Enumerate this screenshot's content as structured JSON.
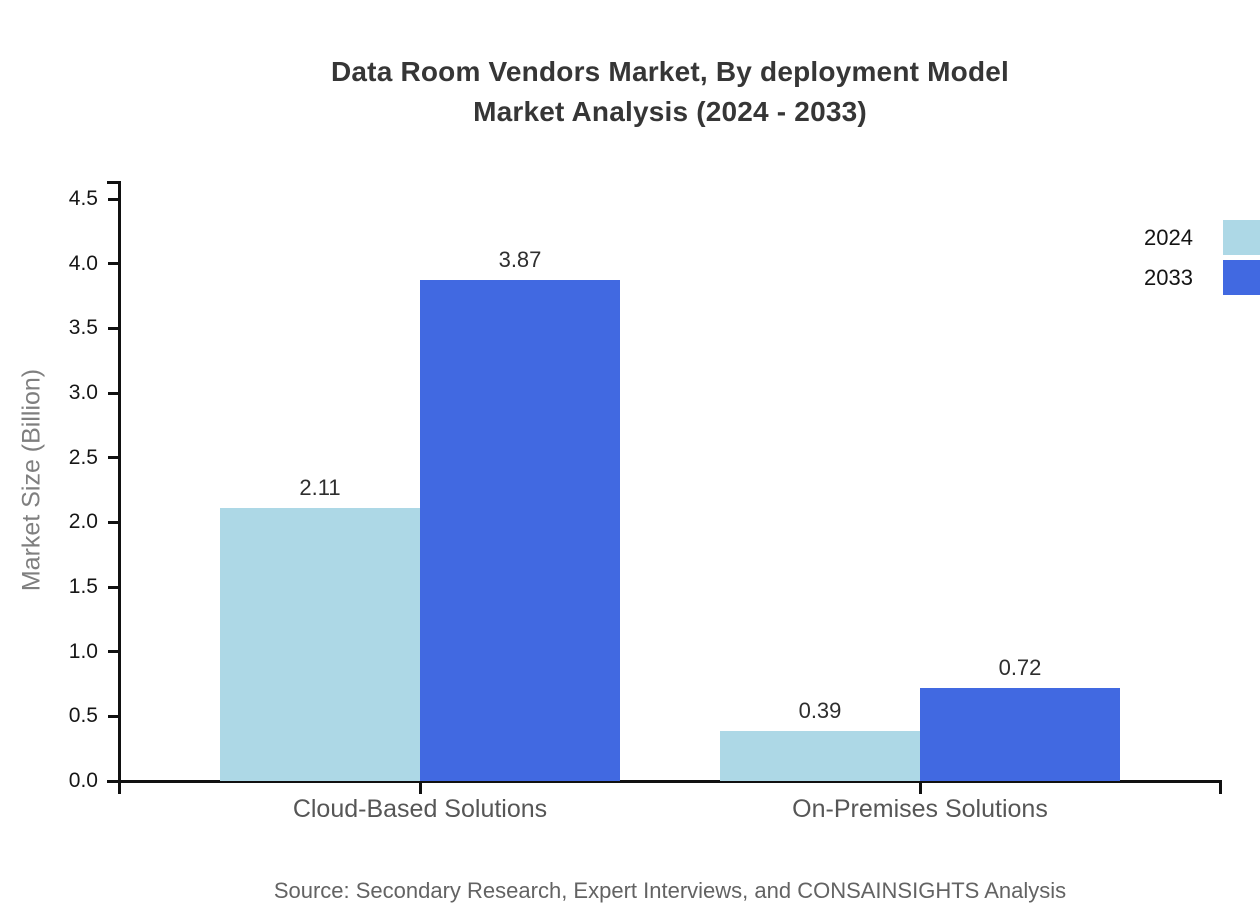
{
  "title": {
    "line1": "Data Room Vendors Market, By deployment Model",
    "line2": "Market Analysis (2024 - 2033)"
  },
  "source_note": "Source: Secondary Research, Expert Interviews, and CONSAINSIGHTS Analysis",
  "chart_data": {
    "type": "bar",
    "title": "Data Room Vendors Market, By deployment Model Market Analysis (2024 - 2033)",
    "categories": [
      "Cloud-Based Solutions",
      "On-Premises Solutions"
    ],
    "series": [
      {
        "name": "2024",
        "values": [
          2.11,
          0.39
        ],
        "color": "#ADD8E6"
      },
      {
        "name": "2033",
        "values": [
          3.87,
          0.72
        ],
        "color": "#4169E1"
      }
    ],
    "xlabel": "",
    "ylabel": "Market Size (Billion)",
    "ylim": [
      0,
      4.5
    ],
    "yticks": [
      0.0,
      0.5,
      1.0,
      1.5,
      2.0,
      2.5,
      3.0,
      3.5,
      4.0,
      4.5
    ],
    "ytick_labels": [
      "0.0",
      "0.5",
      "1.0",
      "1.5",
      "2.0",
      "2.5",
      "3.0",
      "3.5",
      "4.0",
      "4.5"
    ],
    "grid": false,
    "legend_position": "outside-right-top",
    "bar_value_labels": true
  },
  "colors": {
    "series_2024": "#ADD8E6",
    "series_2033": "#4169E1",
    "axis": "#111111",
    "title_text": "#363636"
  }
}
